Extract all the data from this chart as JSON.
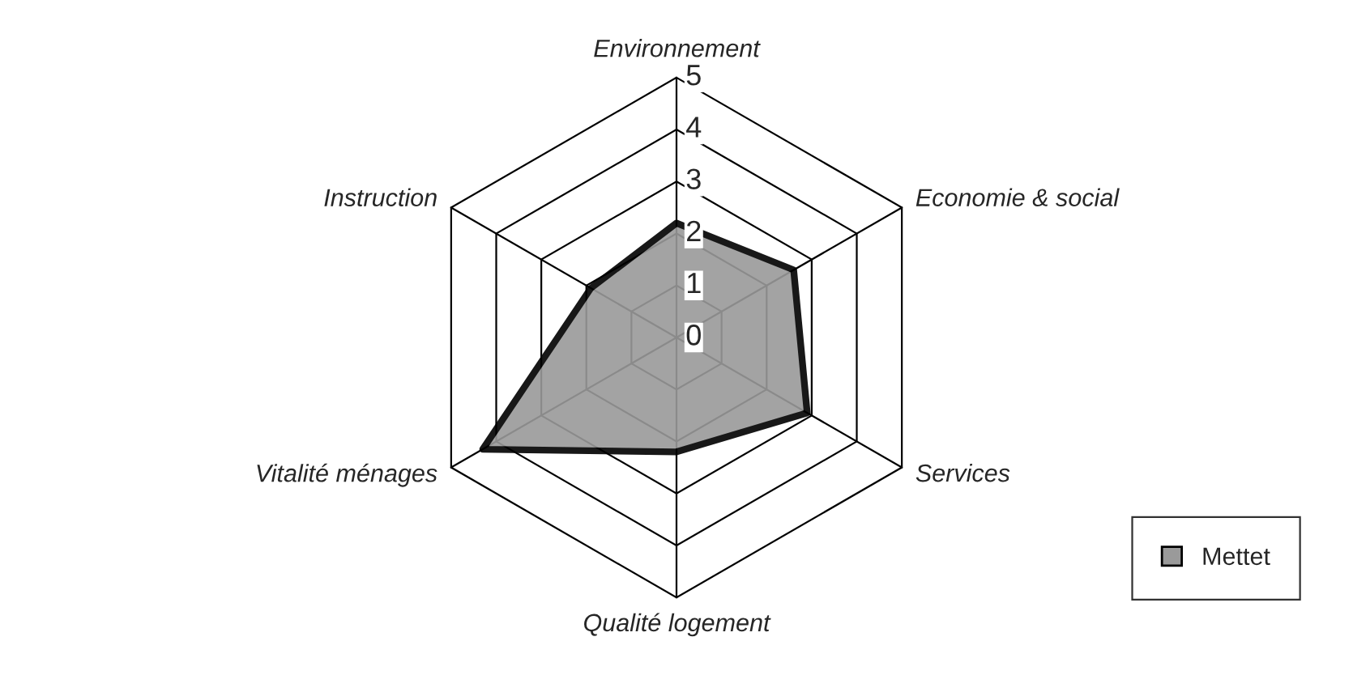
{
  "chart_data": {
    "type": "radar",
    "categories": [
      "Environnement",
      "Economie & social",
      "Services",
      "Qualité logement",
      "Vitalité ménages",
      "Instruction"
    ],
    "series": [
      {
        "name": "Mettet",
        "color": "#9a9a9a",
        "values": [
          2.2,
          2.6,
          2.9,
          2.2,
          4.3,
          1.9
        ]
      }
    ],
    "ylim": [
      0,
      5
    ],
    "yticks": [
      0,
      1,
      2,
      3,
      4,
      5
    ],
    "grid": true,
    "legend": "bottom right"
  }
}
